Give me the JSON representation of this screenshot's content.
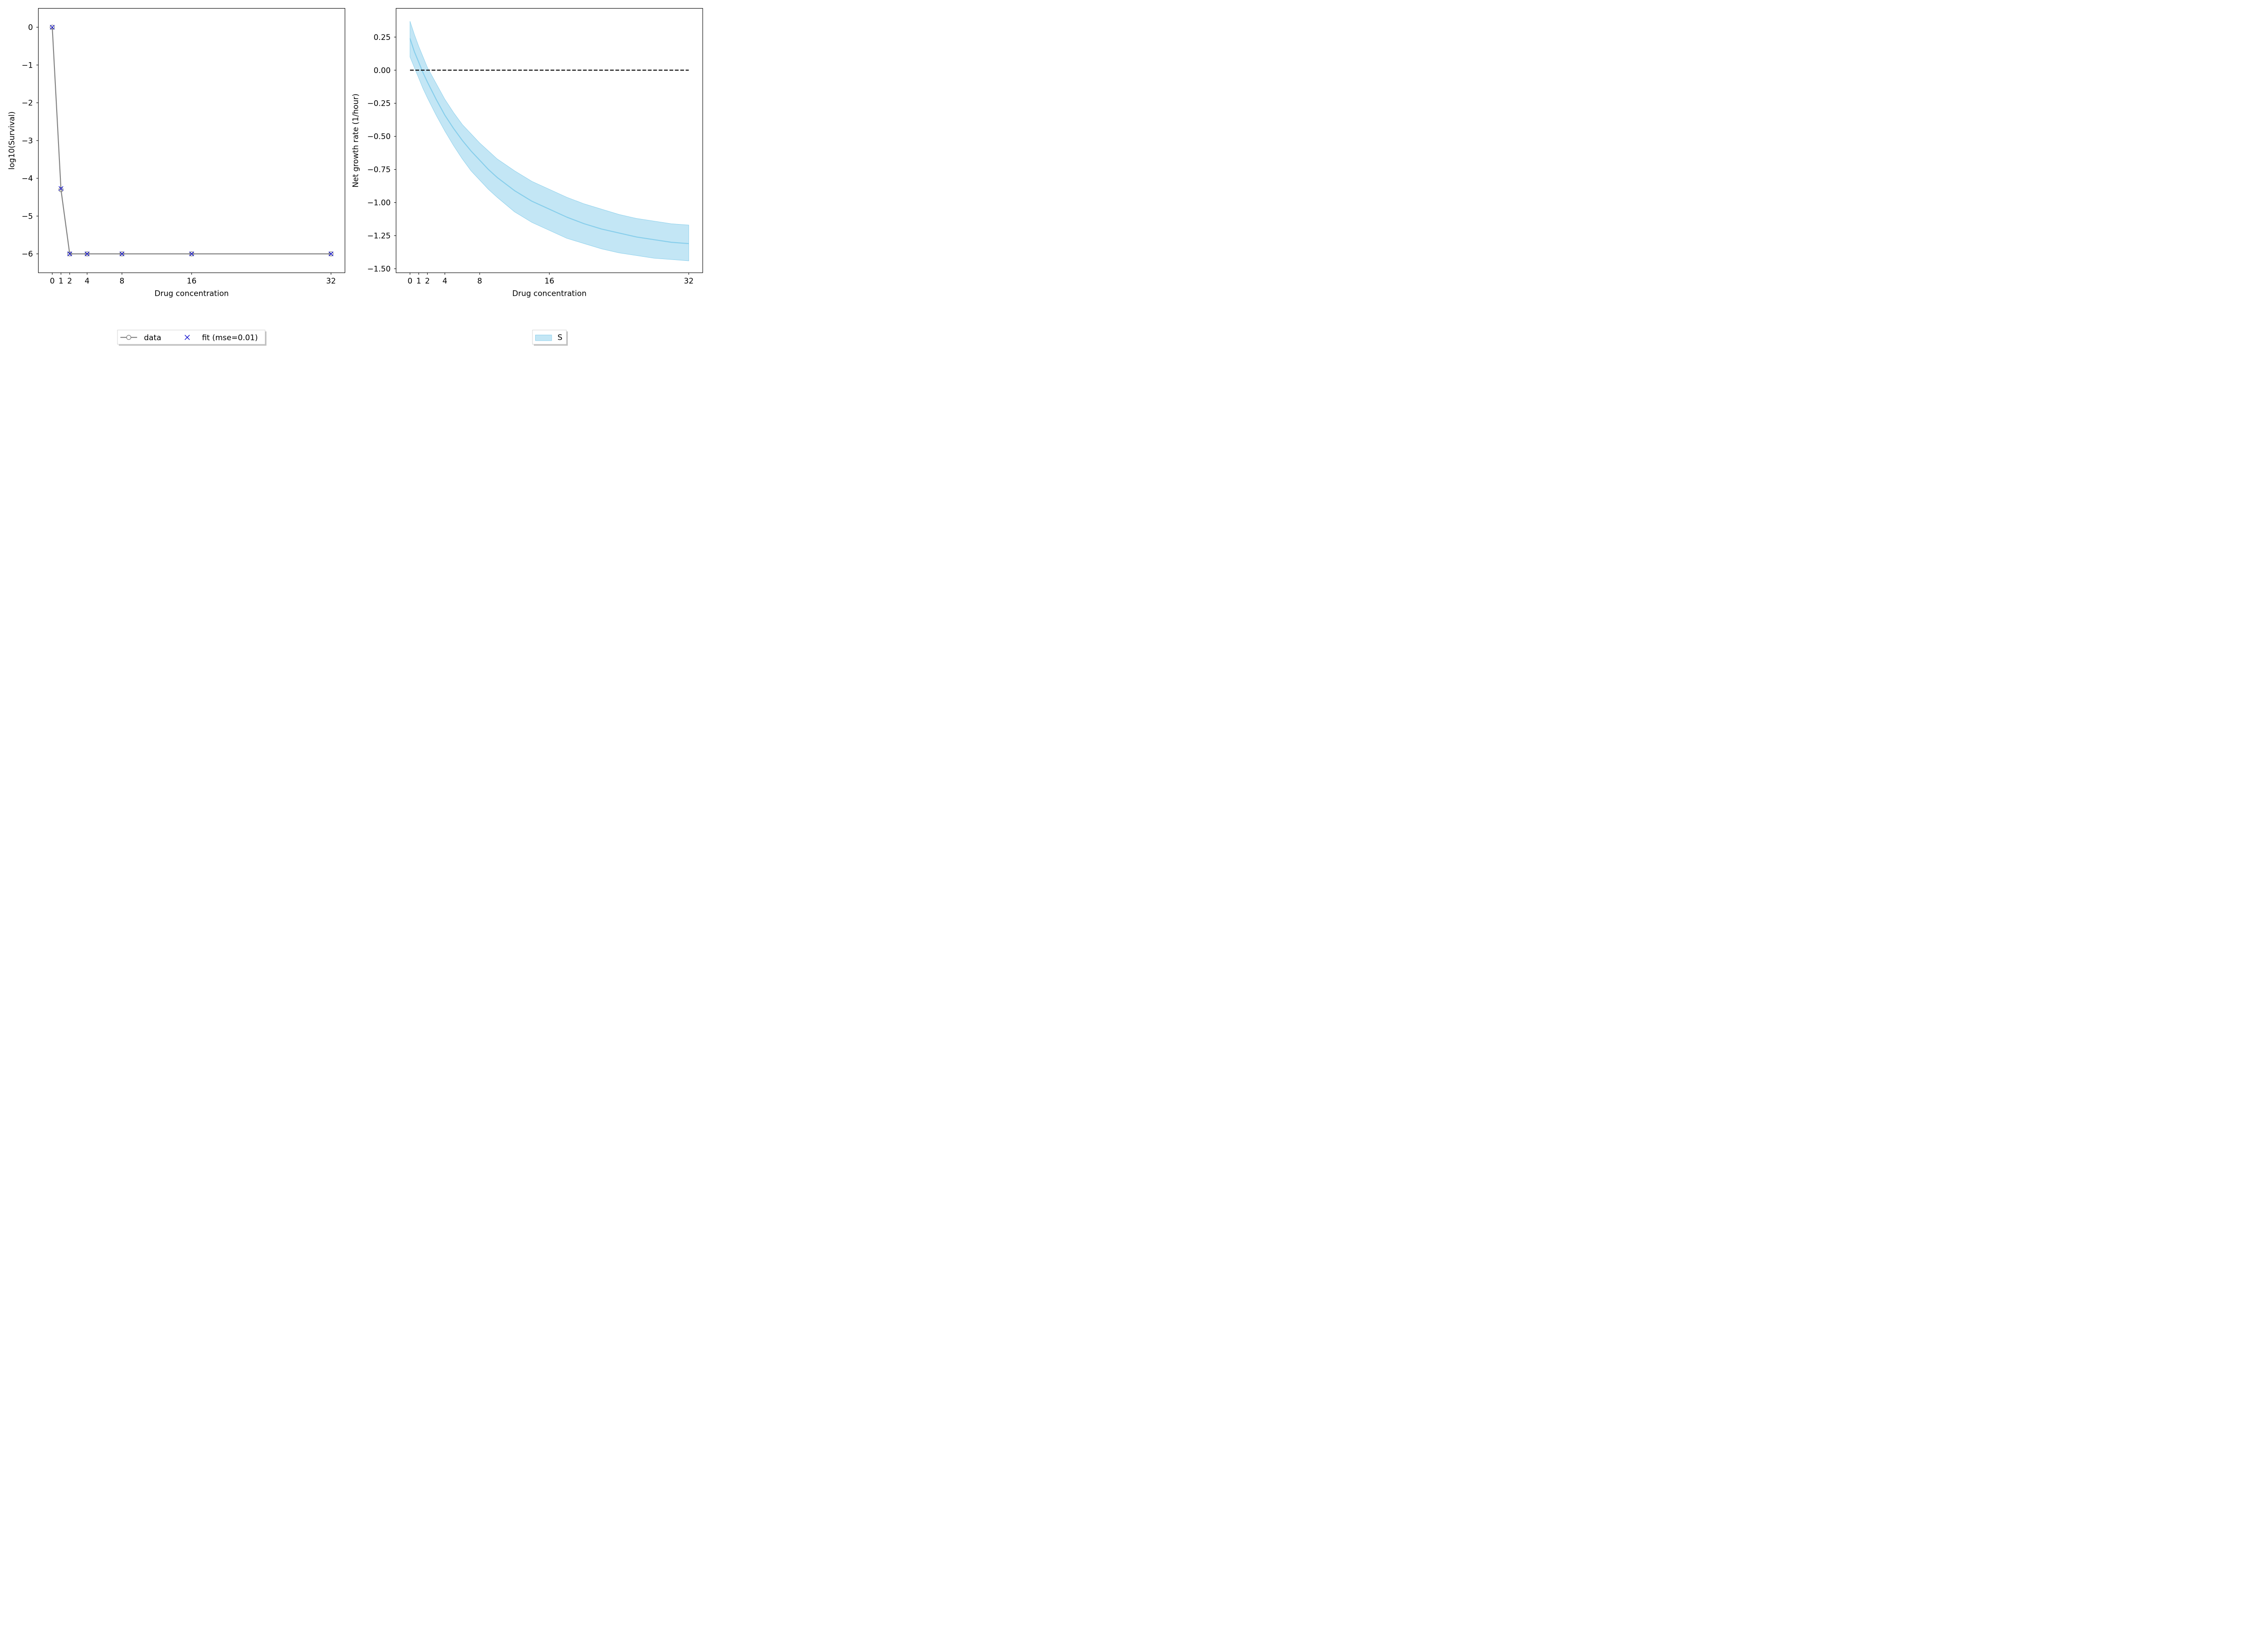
{
  "chart_data": [
    {
      "type": "line",
      "xlabel": "Drug concentration",
      "ylabel": "log10(Survival)",
      "xticks": [
        0,
        1,
        2,
        4,
        8,
        16,
        32
      ],
      "xtick_labels": [
        "0",
        "1",
        "2",
        "4",
        "8",
        "16",
        "32"
      ],
      "yticks": [
        0,
        -1,
        -2,
        -3,
        -4,
        -5,
        -6
      ],
      "ytick_labels": [
        "0",
        "−1",
        "−2",
        "−3",
        "−4",
        "−5",
        "−6"
      ],
      "xlim": [
        -1.6,
        33.6
      ],
      "ylim": [
        -6.5,
        0.5
      ],
      "legend_position": "below-center",
      "series": [
        {
          "name": "data",
          "marker": "circle",
          "color": "#808080",
          "x": [
            0,
            1,
            2,
            4,
            8,
            16,
            32
          ],
          "y": [
            0,
            -4.3,
            -6,
            -6,
            -6,
            -6,
            -6
          ]
        },
        {
          "name": "fit (mse=0.01)",
          "marker": "x",
          "color": "#0000cc",
          "x": [
            0,
            1,
            2,
            4,
            8,
            16,
            32
          ],
          "y": [
            0,
            -4.27,
            -6,
            -6,
            -6,
            -6,
            -6
          ]
        }
      ]
    },
    {
      "type": "area",
      "xlabel": "Drug concentration",
      "ylabel": "Net growth rate (1/hour)",
      "xticks": [
        0,
        1,
        2,
        4,
        8,
        16,
        32
      ],
      "xtick_labels": [
        "0",
        "1",
        "2",
        "4",
        "8",
        "16",
        "32"
      ],
      "yticks": [
        0.25,
        0,
        -0.25,
        -0.5,
        -0.75,
        -1,
        -1.25,
        -1.5
      ],
      "ytick_labels": [
        "0.25",
        "0.00",
        "−0.25",
        "−0.50",
        "−0.75",
        "−1.00",
        "−1.25",
        "−1.50"
      ],
      "xlim": [
        -1.6,
        33.6
      ],
      "ylim": [
        -1.53,
        0.467
      ],
      "legend_position": "below-center",
      "reference_line": {
        "y": 0,
        "style": "dashed",
        "color": "#000000"
      },
      "series": [
        {
          "name": "S",
          "color": "#87ceeb",
          "x": [
            0,
            0.5,
            1,
            1.5,
            2,
            3,
            4,
            5,
            6,
            7,
            8,
            9,
            10,
            12,
            14,
            16,
            18,
            20,
            22,
            24,
            26,
            28,
            30,
            32
          ],
          "mean": [
            0.24,
            0.14,
            0.06,
            -0.02,
            -0.09,
            -0.22,
            -0.34,
            -0.44,
            -0.53,
            -0.61,
            -0.68,
            -0.75,
            -0.81,
            -0.91,
            -0.99,
            -1.05,
            -1.11,
            -1.16,
            -1.2,
            -1.23,
            -1.26,
            -1.28,
            -1.3,
            -1.31
          ],
          "lower": [
            0.1,
            0.02,
            -0.06,
            -0.14,
            -0.21,
            -0.34,
            -0.46,
            -0.57,
            -0.67,
            -0.76,
            -0.83,
            -0.9,
            -0.96,
            -1.07,
            -1.15,
            -1.21,
            -1.27,
            -1.31,
            -1.35,
            -1.38,
            -1.4,
            -1.42,
            -1.43,
            -1.44
          ],
          "upper": [
            0.37,
            0.27,
            0.18,
            0.1,
            0.02,
            -0.1,
            -0.22,
            -0.32,
            -0.41,
            -0.48,
            -0.55,
            -0.61,
            -0.67,
            -0.76,
            -0.84,
            -0.9,
            -0.96,
            -1.01,
            -1.05,
            -1.09,
            -1.12,
            -1.14,
            -1.16,
            -1.17
          ]
        }
      ]
    }
  ]
}
